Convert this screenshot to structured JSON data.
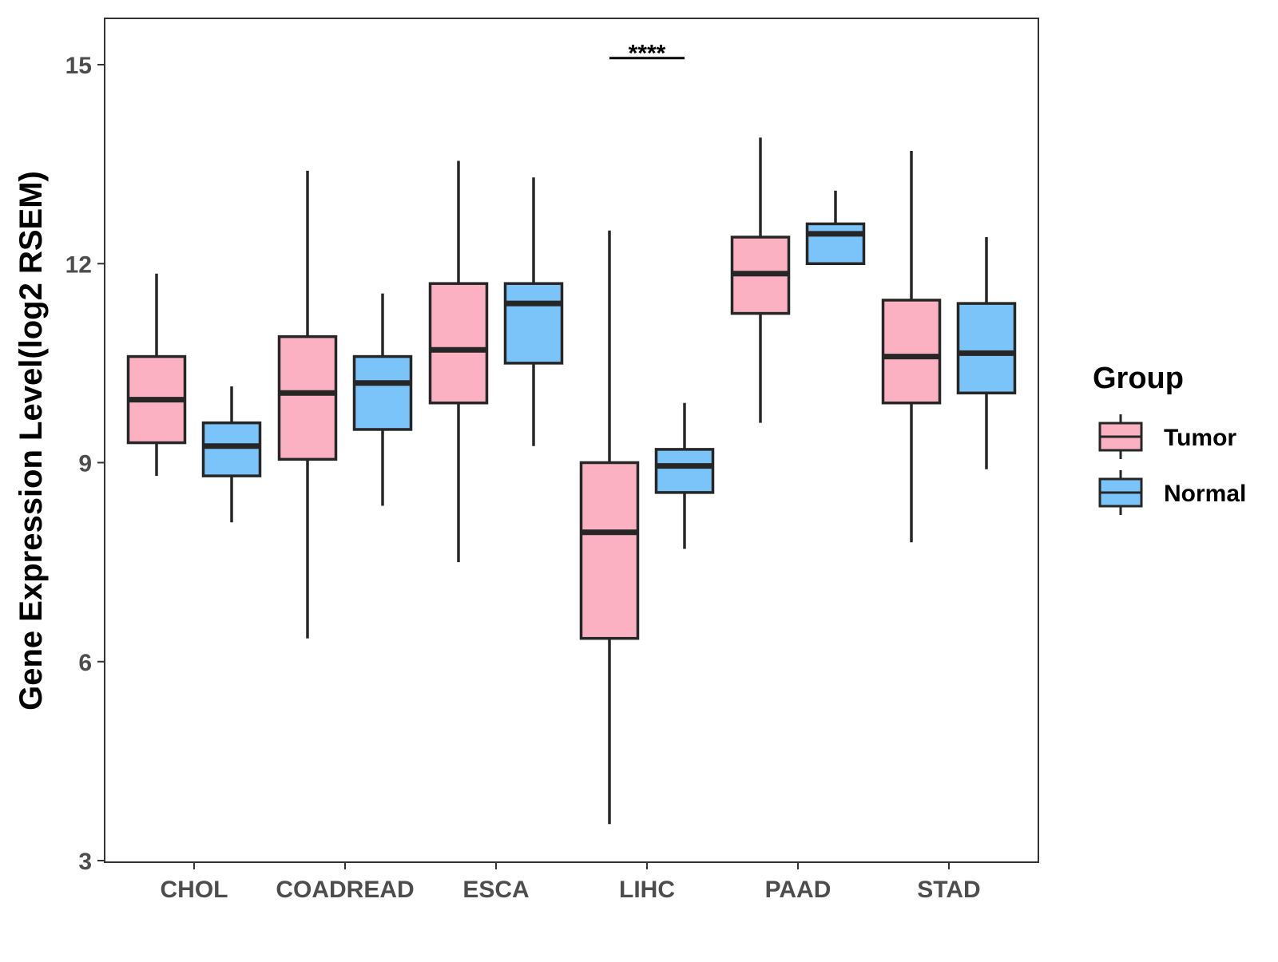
{
  "chart_data": {
    "type": "boxplot",
    "title": "",
    "xlabel": "",
    "ylabel": "Gene Expression Level(log2 RSEM)",
    "ylim": [
      3,
      16
    ],
    "yticks": [
      3,
      6,
      9,
      12,
      15
    ],
    "grid": false,
    "categories": [
      "CHOL",
      "COADREAD",
      "ESCA",
      "LIHC",
      "PAAD",
      "STAD"
    ],
    "legend": {
      "title": "Group",
      "position": "right",
      "entries": [
        {
          "name": "Tumor",
          "color": "#FBB1C2"
        },
        {
          "name": "Normal",
          "color": "#7AC4FA"
        }
      ]
    },
    "series": [
      {
        "name": "Tumor",
        "color": "#FBB1C2",
        "boxes": [
          {
            "min": 8.8,
            "q1": 9.3,
            "median": 9.95,
            "q3": 10.6,
            "max": 11.85
          },
          {
            "min": 6.35,
            "q1": 9.05,
            "median": 10.05,
            "q3": 10.9,
            "max": 13.4
          },
          {
            "min": 7.5,
            "q1": 9.9,
            "median": 10.7,
            "q3": 11.7,
            "max": 13.55
          },
          {
            "min": 3.55,
            "q1": 6.35,
            "median": 7.95,
            "q3": 9.0,
            "max": 12.5
          },
          {
            "min": 9.6,
            "q1": 11.25,
            "median": 11.85,
            "q3": 12.4,
            "max": 13.9
          },
          {
            "min": 7.8,
            "q1": 9.9,
            "median": 10.6,
            "q3": 11.45,
            "max": 13.7
          }
        ]
      },
      {
        "name": "Normal",
        "color": "#7AC4FA",
        "boxes": [
          {
            "min": 8.1,
            "q1": 8.8,
            "median": 9.25,
            "q3": 9.6,
            "max": 10.15
          },
          {
            "min": 8.35,
            "q1": 9.5,
            "median": 10.2,
            "q3": 10.6,
            "max": 11.55
          },
          {
            "min": 9.25,
            "q1": 10.5,
            "median": 11.4,
            "q3": 11.7,
            "max": 13.3
          },
          {
            "min": 7.7,
            "q1": 8.55,
            "median": 8.95,
            "q3": 9.2,
            "max": 9.9
          },
          {
            "min": 12.0,
            "q1": 12.0,
            "median": 12.45,
            "q3": 12.6,
            "max": 13.1
          },
          {
            "min": 8.9,
            "q1": 10.05,
            "median": 10.65,
            "q3": 11.4,
            "max": 12.4
          }
        ]
      }
    ],
    "annotations": [
      {
        "category": "LIHC",
        "text": "****",
        "y": 15.1
      }
    ]
  }
}
